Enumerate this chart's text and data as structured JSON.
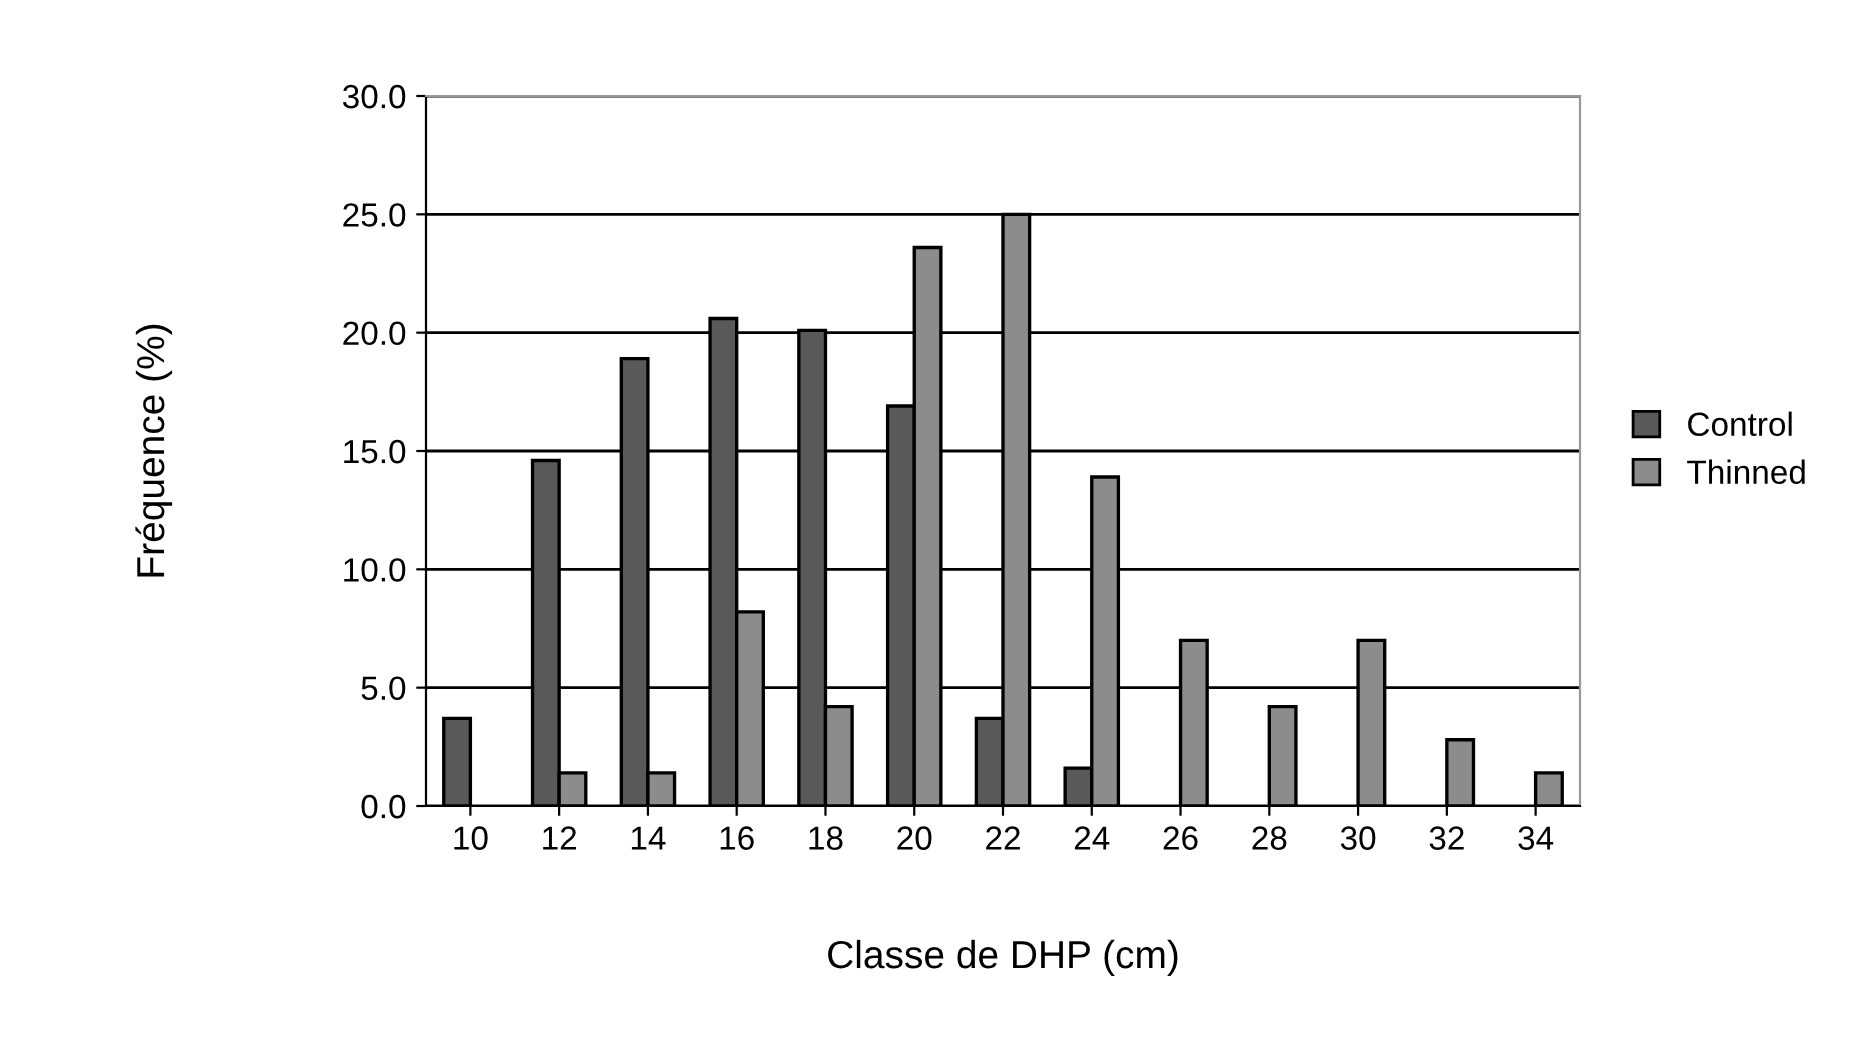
{
  "chart_data": {
    "type": "bar",
    "xlabel": "Classe de DHP (cm)",
    "ylabel": "Fréquence (%)",
    "categories": [
      "10",
      "12",
      "14",
      "16",
      "18",
      "20",
      "22",
      "24",
      "26",
      "28",
      "30",
      "32",
      "34"
    ],
    "series": [
      {
        "name": "Control",
        "color": "#595959",
        "values": [
          3.7,
          14.6,
          18.9,
          20.6,
          20.1,
          16.9,
          3.7,
          1.6,
          0,
          0,
          0,
          0,
          0
        ]
      },
      {
        "name": "Thinned",
        "color": "#8c8c8c",
        "values": [
          0,
          1.4,
          1.4,
          8.2,
          4.2,
          23.6,
          25.0,
          13.9,
          7.0,
          4.2,
          7.0,
          2.8,
          1.4
        ]
      }
    ],
    "ylim": [
      0,
      30
    ],
    "yticks": [
      {
        "value": 0,
        "label": "0.0"
      },
      {
        "value": 5,
        "label": "5.0"
      },
      {
        "value": 10,
        "label": "10.0"
      },
      {
        "value": 15,
        "label": "15.0"
      },
      {
        "value": 20,
        "label": "20.0"
      },
      {
        "value": 25,
        "label": "25.0"
      },
      {
        "value": 30,
        "label": "30.0"
      }
    ],
    "grid": "y",
    "legend": "right"
  }
}
